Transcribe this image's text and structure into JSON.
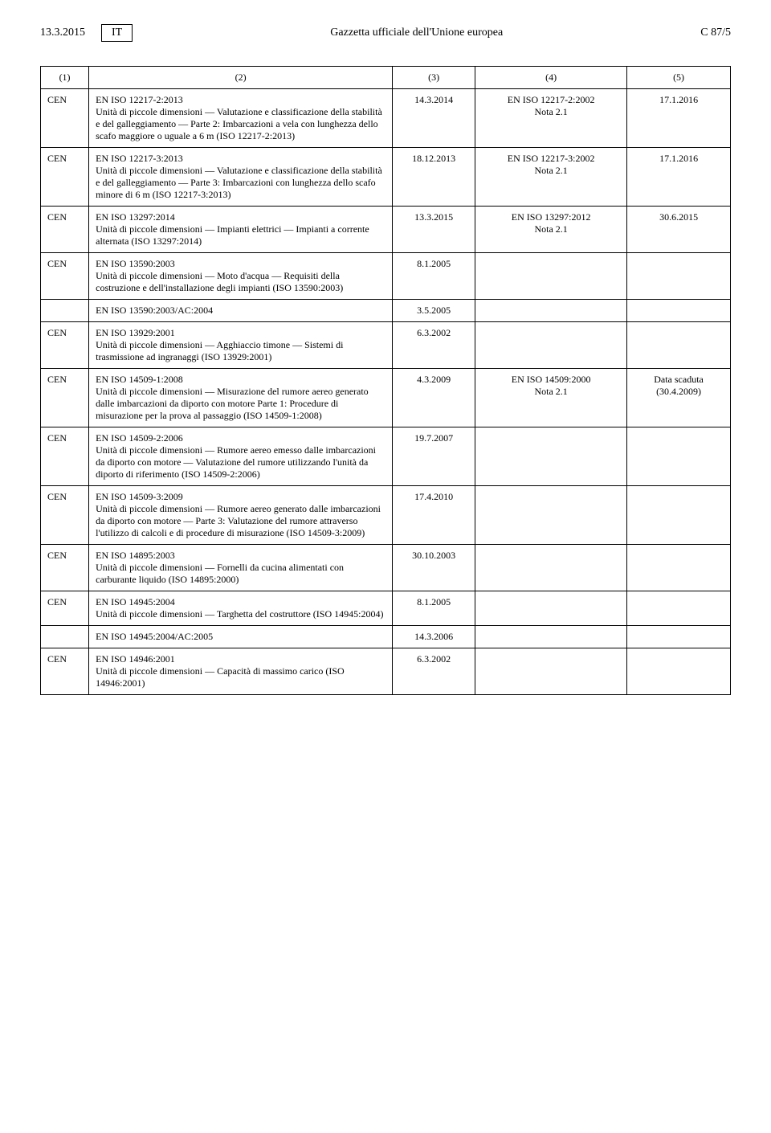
{
  "header": {
    "date": "13.3.2015",
    "lang": "IT",
    "title": "Gazzetta ufficiale dell'Unione europea",
    "page": "C 87/5"
  },
  "columns": [
    "(1)",
    "(2)",
    "(3)",
    "(4)",
    "(5)"
  ],
  "rows": [
    {
      "org": "CEN",
      "title": "EN ISO 12217-2:2013",
      "desc": "Unità di piccole dimensioni — Valutazione e classificazione della stabilità e del galleggiamento — Parte 2: Imbarcazioni a vela con lunghezza dello scafo maggiore o uguale a 6 m (ISO 12217-2:2013)",
      "c3": "14.3.2014",
      "c4a": "EN ISO 12217-2:2002",
      "c4b": "Nota 2.1",
      "c5": "17.1.2016"
    },
    {
      "org": "CEN",
      "title": "EN ISO 12217-3:2013",
      "desc": "Unità di piccole dimensioni — Valutazione e classificazione della stabilità e del galleggiamento — Parte 3: Imbarcazioni con lunghezza dello scafo minore di 6 m (ISO 12217-3:2013)",
      "c3": "18.12.2013",
      "c4a": "EN ISO 12217-3:2002",
      "c4b": "Nota 2.1",
      "c5": "17.1.2016"
    },
    {
      "org": "CEN",
      "title": "EN ISO 13297:2014",
      "desc": "Unità di piccole dimensioni — Impianti elettrici — Impianti a corrente alternata (ISO 13297:2014)",
      "c3": "13.3.2015",
      "c4a": "EN ISO 13297:2012",
      "c4b": "Nota 2.1",
      "c5": "30.6.2015"
    },
    {
      "org": "CEN",
      "title": "EN ISO 13590:2003",
      "desc": "Unità di piccole dimensioni — Moto d'acqua — Requisiti della costruzione e dell'installazione degli impianti (ISO 13590:2003)",
      "c3": "8.1.2005",
      "c4a": "",
      "c4b": "",
      "c5": ""
    },
    {
      "corr": true,
      "title": "EN ISO 13590:2003/AC:2004",
      "c3": "3.5.2005"
    },
    {
      "org": "CEN",
      "title": "EN ISO 13929:2001",
      "desc": "Unità di piccole dimensioni — Agghiaccio timone — Sistemi di trasmissione ad ingranaggi (ISO 13929:2001)",
      "c3": "6.3.2002",
      "c4a": "",
      "c4b": "",
      "c5": ""
    },
    {
      "org": "CEN",
      "title": "EN ISO 14509-1:2008",
      "desc": "Unità di piccole dimensioni — Misurazione del rumore aereo generato dalle imbarcazioni da diporto con motore Parte 1: Procedure di misurazione per la prova al passaggio (ISO 14509-1:2008)",
      "c3": "4.3.2009",
      "c4a": "EN ISO 14509:2000",
      "c4b": "Nota 2.1",
      "c5a": "Data scaduta",
      "c5b": "(30.4.2009)"
    },
    {
      "org": "CEN",
      "title": "EN ISO 14509-2:2006",
      "desc": "Unità di piccole dimensioni — Rumore aereo emesso dalle imbarcazioni da diporto con motore — Valutazione del rumore utilizzando l'unità da diporto di riferimento (ISO 14509-2:2006)",
      "c3": "19.7.2007",
      "c4a": "",
      "c4b": "",
      "c5": ""
    },
    {
      "org": "CEN",
      "title": "EN ISO 14509-3:2009",
      "desc": "Unità di piccole dimensioni — Rumore aereo generato dalle imbarcazioni da diporto con motore — Parte 3: Valutazione del rumore attraverso l'utilizzo di calcoli e di procedure di misurazione (ISO 14509-3:2009)",
      "c3": "17.4.2010",
      "c4a": "",
      "c4b": "",
      "c5": ""
    },
    {
      "org": "CEN",
      "title": "EN ISO 14895:2003",
      "desc": "Unità di piccole dimensioni — Fornelli da cucina alimentati con carburante liquido (ISO 14895:2000)",
      "c3": "30.10.2003",
      "c4a": "",
      "c4b": "",
      "c5": ""
    },
    {
      "org": "CEN",
      "title": "EN ISO 14945:2004",
      "desc": "Unità di piccole dimensioni — Targhetta del costruttore (ISO 14945:2004)",
      "c3": "8.1.2005",
      "c4a": "",
      "c4b": "",
      "c5": ""
    },
    {
      "corr": true,
      "title": "EN ISO 14945:2004/AC:2005",
      "c3": "14.3.2006"
    },
    {
      "org": "CEN",
      "title": "EN ISO 14946:2001",
      "desc": "Unità di piccole dimensioni — Capacità di massimo carico (ISO 14946:2001)",
      "c3": "6.3.2002",
      "c4a": "",
      "c4b": "",
      "c5": ""
    }
  ]
}
